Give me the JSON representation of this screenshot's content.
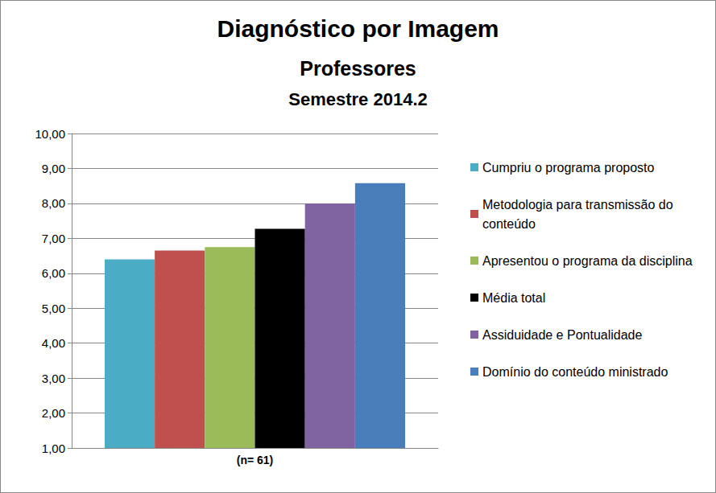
{
  "chart_data": {
    "type": "bar",
    "title": "Diagnóstico por Imagem",
    "subtitle": [
      "Professores",
      "Semestre 2014.2"
    ],
    "categories": [
      "(n= 61)"
    ],
    "series": [
      {
        "name": "Cumpriu o programa proposto",
        "color": "#4BACC6",
        "values": [
          6.4
        ]
      },
      {
        "name": "Metodologia para transmissão do conteúdo",
        "color": "#C0504D",
        "values": [
          6.65
        ]
      },
      {
        "name": "Apresentou o programa da disciplina",
        "color": "#9BBB59",
        "values": [
          6.75
        ]
      },
      {
        "name": "Média total",
        "color": "#000000",
        "values": [
          7.27
        ]
      },
      {
        "name": "Assiduidade e Pontualidade",
        "color": "#8064A2",
        "values": [
          8.0
        ]
      },
      {
        "name": "Domínio do conteúdo ministrado",
        "color": "#4A7EBB",
        "values": [
          8.58
        ]
      }
    ],
    "ylim": [
      1,
      10
    ],
    "yticks": [
      {
        "value": 1,
        "label": "1,00"
      },
      {
        "value": 2,
        "label": "2,00"
      },
      {
        "value": 3,
        "label": "3,00"
      },
      {
        "value": 4,
        "label": "4,00"
      },
      {
        "value": 5,
        "label": "5,00"
      },
      {
        "value": 6,
        "label": "6,00"
      },
      {
        "value": 7,
        "label": "7,00"
      },
      {
        "value": 8,
        "label": "8,00"
      },
      {
        "value": 9,
        "label": "9,00"
      },
      {
        "value": 10,
        "label": "10,00"
      }
    ],
    "grid": true,
    "legend": "right"
  }
}
